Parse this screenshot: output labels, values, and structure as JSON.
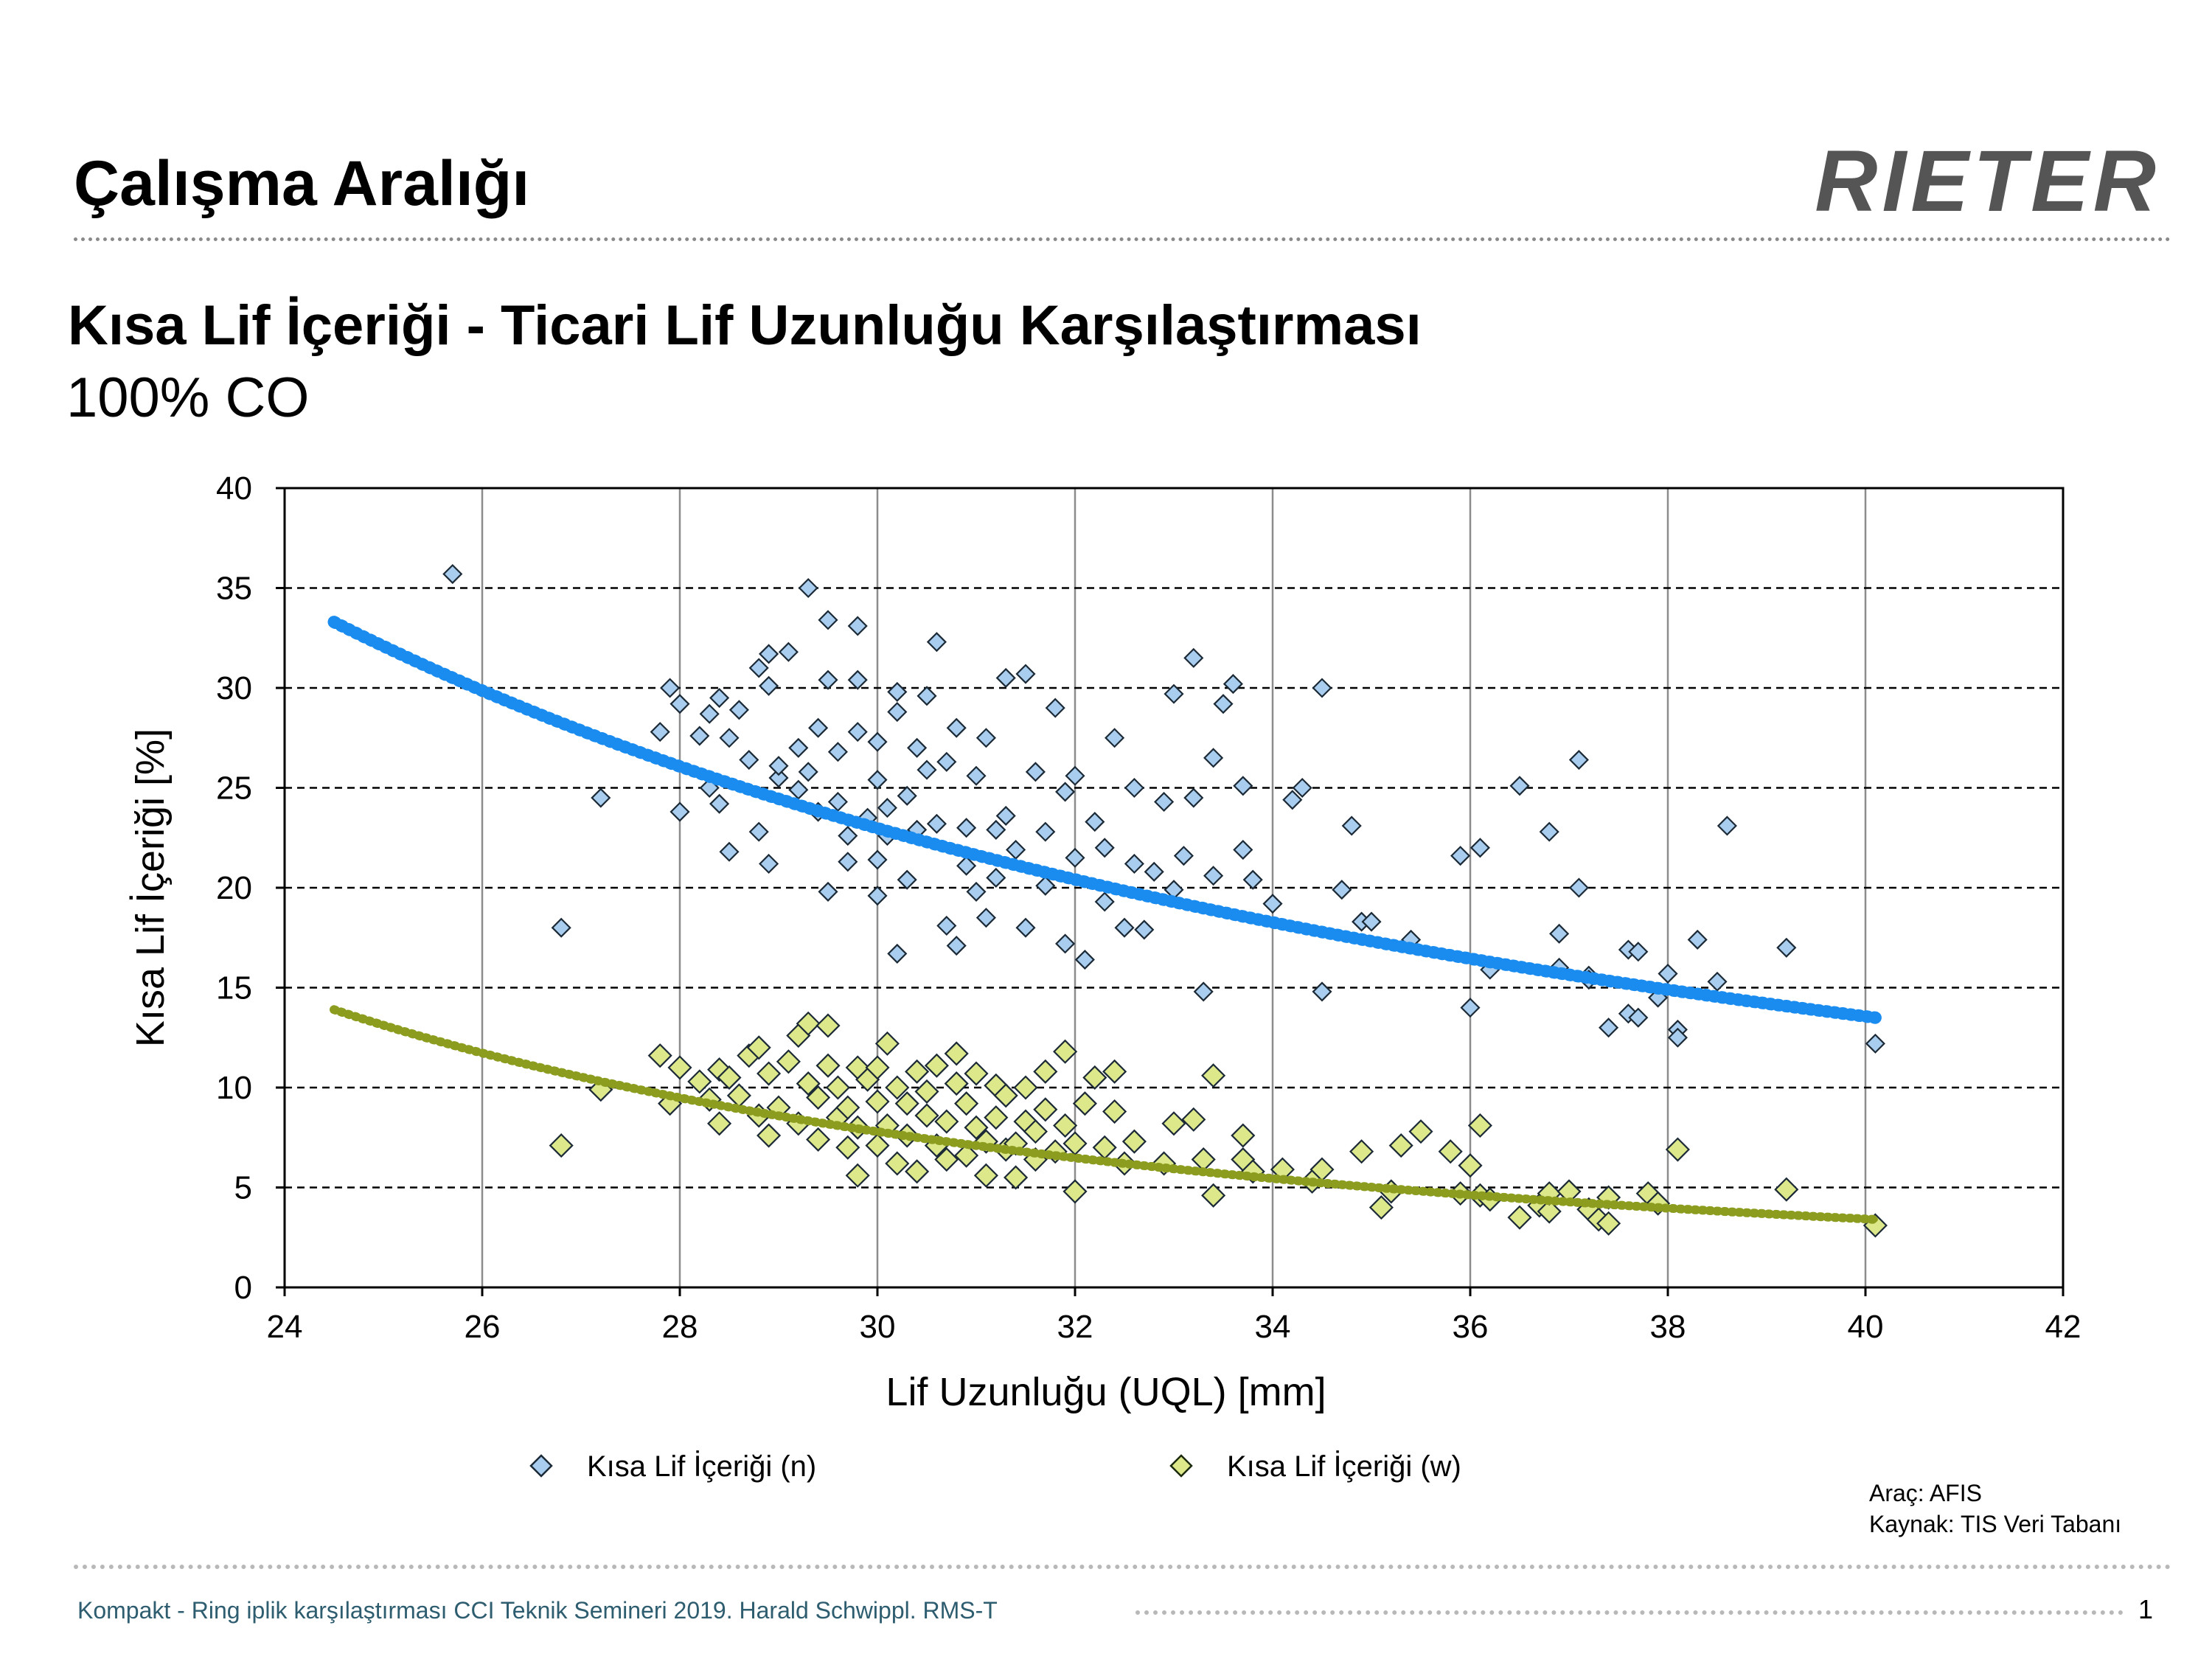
{
  "header": {
    "title": "Çalışma Aralığı",
    "logo_text": "RIETER"
  },
  "chart_heading": {
    "title": "Kısa Lif İçeriği - Ticari Lif Uzunluğu Karşılaştırması",
    "subtitle": "100% CO"
  },
  "chart_data": {
    "type": "scatter",
    "xlabel": "Lif Uzunluğu (UQL) [mm]",
    "ylabel": "Kısa Lif İçeriği [%]",
    "xlim": [
      24,
      42
    ],
    "ylim": [
      0,
      40
    ],
    "x_ticks": [
      "24",
      "26",
      "28",
      "30",
      "32",
      "34",
      "36",
      "38",
      "40",
      "42"
    ],
    "y_ticks": [
      "0",
      "5",
      "10",
      "15",
      "20",
      "25",
      "30",
      "35",
      "40"
    ],
    "grid": "vertical solid, horizontal dashed",
    "legend_position": "bottom",
    "series": [
      {
        "name": "Kısa Lif İçeriği (n)",
        "color": "#a9cdee",
        "trend_color": "#1a8cf0",
        "marker": "diamond",
        "trendline": {
          "type": "power",
          "x_range": [
            24.5,
            40.1
          ],
          "y_range": [
            33.3,
            13.5
          ]
        },
        "points": [
          [
            25.7,
            35.7
          ],
          [
            26.8,
            18.0
          ],
          [
            27.2,
            24.5
          ],
          [
            27.8,
            27.8
          ],
          [
            27.9,
            30.0
          ],
          [
            28.0,
            29.2
          ],
          [
            28.0,
            23.8
          ],
          [
            28.2,
            27.6
          ],
          [
            28.3,
            25.0
          ],
          [
            28.3,
            28.7
          ],
          [
            28.4,
            29.5
          ],
          [
            28.4,
            24.2
          ],
          [
            28.5,
            21.8
          ],
          [
            28.5,
            27.5
          ],
          [
            28.6,
            28.9
          ],
          [
            28.7,
            26.4
          ],
          [
            28.8,
            22.8
          ],
          [
            28.8,
            31.0
          ],
          [
            28.9,
            30.1
          ],
          [
            28.9,
            31.7
          ],
          [
            28.9,
            21.2
          ],
          [
            29.0,
            25.5
          ],
          [
            29.0,
            26.1
          ],
          [
            29.1,
            31.8
          ],
          [
            29.2,
            24.9
          ],
          [
            29.2,
            27.0
          ],
          [
            29.3,
            35.0
          ],
          [
            29.3,
            25.8
          ],
          [
            29.4,
            23.8
          ],
          [
            29.4,
            28.0
          ],
          [
            29.5,
            30.4
          ],
          [
            29.5,
            33.4
          ],
          [
            29.5,
            19.8
          ],
          [
            29.6,
            24.3
          ],
          [
            29.6,
            26.8
          ],
          [
            29.7,
            22.6
          ],
          [
            29.7,
            21.3
          ],
          [
            29.8,
            30.4
          ],
          [
            29.8,
            33.1
          ],
          [
            29.8,
            27.8
          ],
          [
            29.9,
            23.5
          ],
          [
            30.0,
            19.6
          ],
          [
            30.0,
            25.4
          ],
          [
            30.0,
            21.4
          ],
          [
            30.0,
            27.3
          ],
          [
            30.1,
            24.0
          ],
          [
            30.1,
            22.6
          ],
          [
            30.2,
            29.8
          ],
          [
            30.2,
            28.8
          ],
          [
            30.2,
            16.7
          ],
          [
            30.3,
            20.4
          ],
          [
            30.3,
            24.6
          ],
          [
            30.4,
            27.0
          ],
          [
            30.4,
            22.9
          ],
          [
            30.5,
            25.9
          ],
          [
            30.5,
            29.6
          ],
          [
            30.6,
            32.3
          ],
          [
            30.6,
            23.2
          ],
          [
            30.7,
            18.1
          ],
          [
            30.7,
            26.3
          ],
          [
            30.8,
            28.0
          ],
          [
            30.8,
            17.1
          ],
          [
            30.9,
            21.1
          ],
          [
            30.9,
            23.0
          ],
          [
            31.0,
            25.6
          ],
          [
            31.0,
            19.8
          ],
          [
            31.1,
            18.5
          ],
          [
            31.1,
            27.5
          ],
          [
            31.2,
            22.9
          ],
          [
            31.2,
            20.5
          ],
          [
            31.3,
            30.5
          ],
          [
            31.3,
            23.6
          ],
          [
            31.4,
            21.9
          ],
          [
            31.5,
            30.7
          ],
          [
            31.5,
            18.0
          ],
          [
            31.6,
            25.8
          ],
          [
            31.7,
            22.8
          ],
          [
            31.7,
            20.1
          ],
          [
            31.8,
            29.0
          ],
          [
            31.9,
            24.8
          ],
          [
            31.9,
            17.2
          ],
          [
            32.0,
            21.5
          ],
          [
            32.0,
            25.6
          ],
          [
            32.1,
            16.4
          ],
          [
            32.2,
            23.3
          ],
          [
            32.3,
            19.3
          ],
          [
            32.3,
            22.0
          ],
          [
            32.4,
            27.5
          ],
          [
            32.5,
            18.0
          ],
          [
            32.6,
            21.2
          ],
          [
            32.6,
            25.0
          ],
          [
            32.7,
            17.9
          ],
          [
            32.8,
            20.8
          ],
          [
            32.9,
            24.3
          ],
          [
            33.0,
            19.9
          ],
          [
            33.0,
            29.7
          ],
          [
            33.1,
            21.6
          ],
          [
            33.2,
            31.5
          ],
          [
            33.2,
            24.5
          ],
          [
            33.3,
            14.8
          ],
          [
            33.4,
            26.5
          ],
          [
            33.4,
            20.6
          ],
          [
            33.5,
            29.2
          ],
          [
            33.6,
            30.2
          ],
          [
            33.7,
            25.1
          ],
          [
            33.7,
            21.9
          ],
          [
            33.8,
            20.4
          ],
          [
            34.0,
            19.2
          ],
          [
            34.2,
            24.4
          ],
          [
            34.3,
            25.0
          ],
          [
            34.5,
            14.8
          ],
          [
            34.5,
            30.0
          ],
          [
            34.7,
            19.9
          ],
          [
            34.8,
            23.1
          ],
          [
            34.9,
            18.3
          ],
          [
            35.0,
            18.3
          ],
          [
            35.4,
            17.4
          ],
          [
            35.9,
            21.6
          ],
          [
            36.0,
            14.0
          ],
          [
            36.1,
            22.0
          ],
          [
            36.2,
            15.9
          ],
          [
            36.5,
            25.1
          ],
          [
            36.8,
            22.8
          ],
          [
            36.9,
            17.7
          ],
          [
            36.9,
            16.0
          ],
          [
            37.1,
            20.0
          ],
          [
            37.1,
            26.4
          ],
          [
            37.2,
            15.6
          ],
          [
            37.2,
            15.4
          ],
          [
            37.4,
            13.0
          ],
          [
            37.6,
            16.9
          ],
          [
            37.6,
            13.7
          ],
          [
            37.7,
            16.8
          ],
          [
            37.7,
            13.5
          ],
          [
            37.9,
            14.5
          ],
          [
            38.0,
            15.7
          ],
          [
            38.1,
            12.9
          ],
          [
            38.1,
            12.5
          ],
          [
            38.3,
            17.4
          ],
          [
            38.5,
            15.3
          ],
          [
            38.6,
            23.1
          ],
          [
            39.2,
            17.0
          ],
          [
            40.1,
            12.2
          ]
        ]
      },
      {
        "name": "Kısa Lif İçeriği (w)",
        "color": "#dde88a",
        "trend_color": "#8c9c1e",
        "marker": "diamond",
        "trendline": {
          "type": "power",
          "x_range": [
            24.5,
            40.1
          ],
          "y_range": [
            13.9,
            3.4
          ]
        },
        "points": [
          [
            26.8,
            7.1
          ],
          [
            27.2,
            9.9
          ],
          [
            27.8,
            11.6
          ],
          [
            27.9,
            9.2
          ],
          [
            28.0,
            11.0
          ],
          [
            28.2,
            10.3
          ],
          [
            28.3,
            9.4
          ],
          [
            28.4,
            10.9
          ],
          [
            28.4,
            8.2
          ],
          [
            28.5,
            10.5
          ],
          [
            28.6,
            9.6
          ],
          [
            28.7,
            11.6
          ],
          [
            28.8,
            8.6
          ],
          [
            28.8,
            12.0
          ],
          [
            28.9,
            7.6
          ],
          [
            28.9,
            10.7
          ],
          [
            29.0,
            9.0
          ],
          [
            29.1,
            11.3
          ],
          [
            29.2,
            8.2
          ],
          [
            29.2,
            12.6
          ],
          [
            29.3,
            10.2
          ],
          [
            29.3,
            13.2
          ],
          [
            29.4,
            7.4
          ],
          [
            29.4,
            9.5
          ],
          [
            29.5,
            11.1
          ],
          [
            29.5,
            13.1
          ],
          [
            29.6,
            8.5
          ],
          [
            29.6,
            10.0
          ],
          [
            29.7,
            7.0
          ],
          [
            29.7,
            9.0
          ],
          [
            29.8,
            11.0
          ],
          [
            29.8,
            5.6
          ],
          [
            29.8,
            8.0
          ],
          [
            29.9,
            10.4
          ],
          [
            30.0,
            7.1
          ],
          [
            30.0,
            11.0
          ],
          [
            30.0,
            9.3
          ],
          [
            30.1,
            12.2
          ],
          [
            30.1,
            8.1
          ],
          [
            30.2,
            6.2
          ],
          [
            30.2,
            10.0
          ],
          [
            30.3,
            7.6
          ],
          [
            30.3,
            9.2
          ],
          [
            30.4,
            10.8
          ],
          [
            30.4,
            5.8
          ],
          [
            30.5,
            8.6
          ],
          [
            30.5,
            9.8
          ],
          [
            30.6,
            7.1
          ],
          [
            30.6,
            11.1
          ],
          [
            30.7,
            6.4
          ],
          [
            30.7,
            8.3
          ],
          [
            30.8,
            10.2
          ],
          [
            30.8,
            11.7
          ],
          [
            30.9,
            9.2
          ],
          [
            30.9,
            6.6
          ],
          [
            31.0,
            8.0
          ],
          [
            31.0,
            10.7
          ],
          [
            31.1,
            5.6
          ],
          [
            31.1,
            7.3
          ],
          [
            31.2,
            10.1
          ],
          [
            31.2,
            8.5
          ],
          [
            31.3,
            6.9
          ],
          [
            31.3,
            9.6
          ],
          [
            31.4,
            7.2
          ],
          [
            31.4,
            5.5
          ],
          [
            31.5,
            8.3
          ],
          [
            31.5,
            10.0
          ],
          [
            31.6,
            6.4
          ],
          [
            31.6,
            7.8
          ],
          [
            31.7,
            8.9
          ],
          [
            31.7,
            10.8
          ],
          [
            31.8,
            6.8
          ],
          [
            31.9,
            8.1
          ],
          [
            31.9,
            11.8
          ],
          [
            32.0,
            4.8
          ],
          [
            32.0,
            7.2
          ],
          [
            32.1,
            9.2
          ],
          [
            32.2,
            10.5
          ],
          [
            32.3,
            7.0
          ],
          [
            32.4,
            10.8
          ],
          [
            32.4,
            8.8
          ],
          [
            32.5,
            6.2
          ],
          [
            32.6,
            7.3
          ],
          [
            32.9,
            6.2
          ],
          [
            33.0,
            8.2
          ],
          [
            33.2,
            8.4
          ],
          [
            33.3,
            6.4
          ],
          [
            33.4,
            4.6
          ],
          [
            33.4,
            10.6
          ],
          [
            33.7,
            6.4
          ],
          [
            33.7,
            7.6
          ],
          [
            33.8,
            5.8
          ],
          [
            34.1,
            5.9
          ],
          [
            34.4,
            5.3
          ],
          [
            34.5,
            5.9
          ],
          [
            34.9,
            6.8
          ],
          [
            35.1,
            4.0
          ],
          [
            35.2,
            4.8
          ],
          [
            35.3,
            7.1
          ],
          [
            35.5,
            7.8
          ],
          [
            35.8,
            6.8
          ],
          [
            35.9,
            4.7
          ],
          [
            36.0,
            6.1
          ],
          [
            36.1,
            8.1
          ],
          [
            36.1,
            4.6
          ],
          [
            36.2,
            4.4
          ],
          [
            36.5,
            3.5
          ],
          [
            36.7,
            4.1
          ],
          [
            36.8,
            3.8
          ],
          [
            36.8,
            4.7
          ],
          [
            37.0,
            4.8
          ],
          [
            37.2,
            3.9
          ],
          [
            37.3,
            3.4
          ],
          [
            37.4,
            4.5
          ],
          [
            37.4,
            3.2
          ],
          [
            37.8,
            4.7
          ],
          [
            37.9,
            4.2
          ],
          [
            38.1,
            6.9
          ],
          [
            39.2,
            4.9
          ],
          [
            40.1,
            3.1
          ]
        ]
      }
    ]
  },
  "source_note": {
    "tool": "Araç: AFIS",
    "source": "Kaynak: TIS Veri Tabanı"
  },
  "footer": {
    "text": "Kompakt - Ring iplik karşılaştırması CCI Teknik Semineri 2019. Harald Schwippl. RMS-T",
    "page_number": "1"
  }
}
